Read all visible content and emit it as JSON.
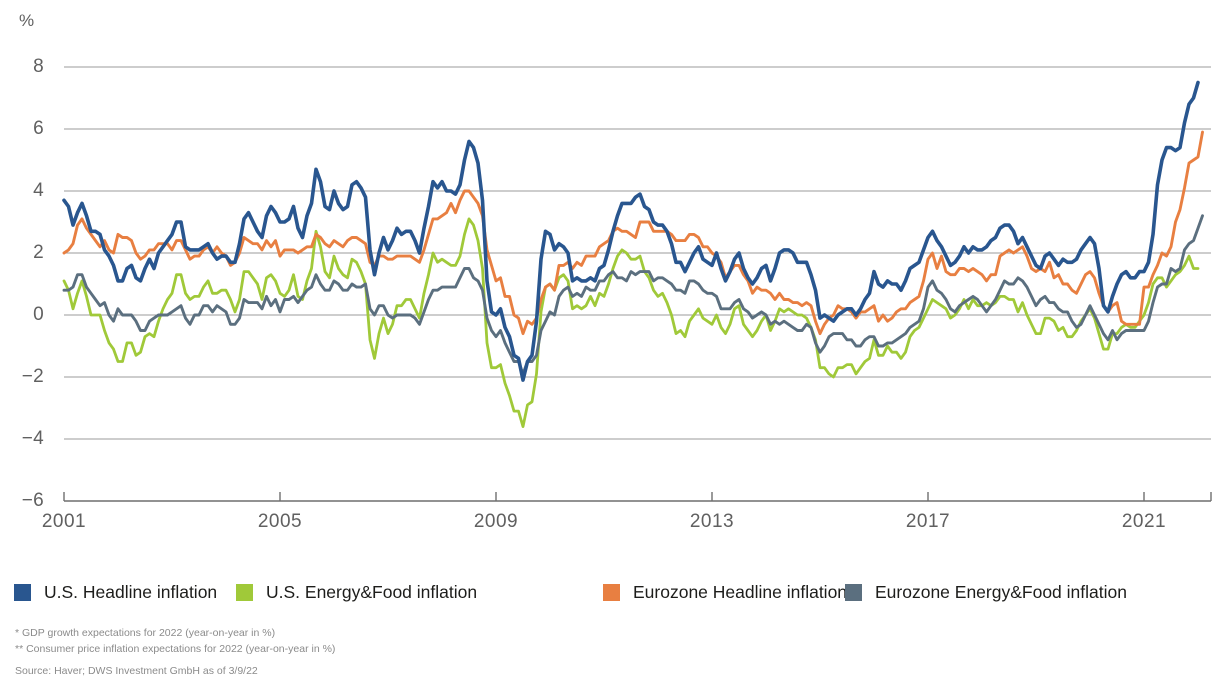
{
  "chart_data": {
    "type": "line",
    "title": "",
    "unit_label": "%",
    "x_start_year": 2001,
    "x_months_per_point": 1,
    "xticks": [
      "2001",
      "2005",
      "2009",
      "2013",
      "2017",
      "2021"
    ],
    "yticks": [
      8,
      6,
      4,
      2,
      0,
      -2,
      -4,
      -6
    ],
    "ylim": [
      -6,
      8
    ],
    "grid": true,
    "legend_position": "bottom",
    "colors": {
      "grid": "#9b9b9b",
      "axis": "#6f6f6f"
    },
    "series": [
      {
        "name": "U.S. Headline inflation",
        "color": "#29568f",
        "values": [
          3.7,
          3.5,
          2.9,
          3.3,
          3.6,
          3.2,
          2.7,
          2.7,
          2.6,
          2.1,
          1.9,
          1.6,
          1.1,
          1.1,
          1.5,
          1.6,
          1.2,
          1.1,
          1.5,
          1.8,
          1.5,
          2.0,
          2.2,
          2.4,
          2.6,
          3.0,
          3.0,
          2.2,
          2.1,
          2.1,
          2.1,
          2.2,
          2.3,
          2.0,
          1.8,
          1.9,
          1.9,
          1.7,
          1.7,
          2.3,
          3.1,
          3.3,
          3.0,
          2.7,
          2.5,
          3.2,
          3.5,
          3.3,
          3.0,
          3.0,
          3.1,
          3.5,
          2.8,
          2.5,
          3.2,
          3.6,
          4.7,
          4.3,
          3.5,
          3.4,
          4.0,
          3.6,
          3.4,
          3.5,
          4.2,
          4.3,
          4.1,
          3.8,
          2.1,
          1.3,
          2.0,
          2.5,
          2.1,
          2.4,
          2.8,
          2.6,
          2.7,
          2.7,
          2.4,
          2.0,
          2.8,
          3.5,
          4.3,
          4.1,
          4.3,
          4.0,
          4.0,
          3.9,
          4.2,
          5.0,
          5.6,
          5.4,
          4.9,
          3.7,
          1.1,
          0.1,
          0.0,
          0.2,
          -0.4,
          -0.7,
          -1.3,
          -1.4,
          -2.1,
          -1.5,
          -1.3,
          -0.2,
          1.8,
          2.7,
          2.6,
          2.1,
          2.3,
          2.2,
          2.0,
          1.1,
          1.2,
          1.1,
          1.1,
          1.2,
          1.1,
          1.5,
          1.6,
          2.1,
          2.7,
          3.2,
          3.6,
          3.6,
          3.6,
          3.8,
          3.9,
          3.5,
          3.4,
          3.0,
          2.9,
          2.9,
          2.7,
          2.3,
          1.7,
          1.7,
          1.4,
          1.7,
          2.0,
          2.2,
          1.8,
          1.7,
          1.6,
          2.0,
          1.5,
          1.1,
          1.4,
          1.8,
          2.0,
          1.5,
          1.2,
          1.0,
          1.2,
          1.5,
          1.6,
          1.1,
          1.5,
          2.0,
          2.1,
          2.1,
          2.0,
          1.7,
          1.7,
          1.7,
          1.3,
          0.8,
          -0.1,
          0.0,
          -0.1,
          -0.2,
          0.0,
          0.1,
          0.2,
          0.2,
          0.0,
          0.2,
          0.5,
          0.7,
          1.4,
          1.0,
          0.9,
          1.1,
          1.0,
          1.0,
          0.8,
          1.1,
          1.5,
          1.6,
          1.7,
          2.1,
          2.5,
          2.7,
          2.4,
          2.2,
          1.9,
          1.6,
          1.7,
          1.9,
          2.2,
          2.0,
          2.2,
          2.1,
          2.1,
          2.2,
          2.4,
          2.5,
          2.8,
          2.9,
          2.9,
          2.7,
          2.3,
          2.5,
          2.2,
          1.9,
          1.6,
          1.5,
          1.9,
          2.0,
          1.8,
          1.6,
          1.8,
          1.7,
          1.7,
          1.8,
          2.1,
          2.3,
          2.5,
          2.3,
          1.5,
          0.3,
          0.1,
          0.6,
          1.0,
          1.3,
          1.4,
          1.2,
          1.2,
          1.4,
          1.4,
          1.7,
          2.6,
          4.2,
          5.0,
          5.4,
          5.4,
          5.3,
          5.4,
          6.2,
          6.8,
          7.0,
          7.5
        ]
      },
      {
        "name": "U.S. Energy&Food inflation",
        "color": "#a0c939",
        "values": [
          1.1,
          0.8,
          0.2,
          0.7,
          1.1,
          0.6,
          0.0,
          0.0,
          0.0,
          -0.5,
          -0.9,
          -1.1,
          -1.5,
          -1.5,
          -0.9,
          -0.9,
          -1.3,
          -1.2,
          -0.7,
          -0.6,
          -0.7,
          -0.2,
          0.2,
          0.5,
          0.7,
          1.3,
          1.3,
          0.7,
          0.5,
          0.6,
          0.6,
          0.9,
          1.1,
          0.7,
          0.7,
          0.8,
          0.8,
          0.5,
          0.1,
          0.5,
          1.4,
          1.4,
          1.2,
          1.0,
          0.5,
          1.2,
          1.3,
          1.1,
          0.7,
          0.6,
          0.8,
          1.3,
          0.6,
          0.5,
          1.1,
          1.5,
          2.7,
          2.2,
          1.4,
          1.2,
          1.9,
          1.5,
          1.3,
          1.2,
          1.8,
          1.7,
          1.4,
          1.0,
          -0.8,
          -1.4,
          -0.6,
          -0.1,
          -0.6,
          -0.3,
          0.3,
          0.3,
          0.5,
          0.5,
          0.2,
          -0.1,
          0.7,
          1.3,
          2.0,
          1.7,
          1.8,
          1.7,
          1.6,
          1.6,
          1.9,
          2.6,
          3.1,
          2.9,
          2.4,
          1.5,
          -0.9,
          -1.7,
          -1.7,
          -1.6,
          -2.2,
          -2.6,
          -3.1,
          -3.1,
          -3.6,
          -2.9,
          -2.8,
          -1.9,
          0.1,
          0.9,
          1.0,
          0.8,
          1.2,
          1.3,
          1.1,
          0.2,
          0.3,
          0.2,
          0.3,
          0.6,
          0.3,
          0.7,
          0.6,
          1.0,
          1.5,
          1.9,
          2.1,
          2.0,
          1.8,
          1.8,
          1.9,
          1.4,
          1.2,
          0.8,
          0.6,
          0.7,
          0.4,
          0.0,
          -0.6,
          -0.5,
          -0.7,
          -0.2,
          0.0,
          0.2,
          -0.1,
          -0.2,
          -0.3,
          0.0,
          -0.4,
          -0.6,
          -0.3,
          0.2,
          0.3,
          -0.3,
          -0.5,
          -0.7,
          -0.5,
          -0.2,
          0.0,
          -0.5,
          -0.2,
          0.2,
          0.1,
          0.2,
          0.1,
          0.0,
          0.0,
          -0.1,
          -0.4,
          -0.8,
          -1.7,
          -1.7,
          -1.9,
          -2.0,
          -1.7,
          -1.7,
          -1.6,
          -1.6,
          -1.9,
          -1.7,
          -1.5,
          -1.4,
          -0.8,
          -1.3,
          -1.3,
          -1.0,
          -1.2,
          -1.2,
          -1.4,
          -1.2,
          -0.7,
          -0.5,
          -0.4,
          -0.1,
          0.2,
          0.5,
          0.4,
          0.3,
          0.2,
          -0.1,
          0.0,
          0.2,
          0.5,
          0.2,
          0.5,
          0.3,
          0.3,
          0.4,
          0.3,
          0.4,
          0.6,
          0.6,
          0.5,
          0.5,
          0.1,
          0.4,
          0.0,
          -0.3,
          -0.6,
          -0.6,
          -0.1,
          -0.1,
          -0.2,
          -0.5,
          -0.4,
          -0.7,
          -0.7,
          -0.5,
          -0.2,
          0.0,
          0.2,
          -0.1,
          -0.6,
          -1.1,
          -1.1,
          -0.6,
          -0.6,
          -0.4,
          -0.3,
          -0.4,
          -0.4,
          -0.2,
          0.0,
          0.4,
          1.0,
          1.2,
          1.2,
          0.9,
          1.1,
          1.3,
          1.4,
          1.6,
          1.9,
          1.5,
          1.5
        ]
      },
      {
        "name": "Eurozone Headline inflation",
        "color": "#e87f41",
        "values": [
          2.0,
          2.1,
          2.3,
          2.9,
          3.1,
          2.8,
          2.6,
          2.4,
          2.2,
          2.4,
          2.1,
          2.0,
          2.6,
          2.5,
          2.5,
          2.4,
          2.0,
          1.8,
          1.9,
          2.1,
          2.1,
          2.3,
          2.3,
          2.3,
          2.1,
          2.4,
          2.4,
          2.1,
          1.8,
          1.9,
          1.9,
          2.1,
          2.2,
          2.0,
          2.2,
          2.0,
          1.9,
          1.6,
          1.7,
          2.0,
          2.5,
          2.4,
          2.3,
          2.3,
          2.1,
          2.4,
          2.2,
          2.4,
          1.9,
          2.1,
          2.1,
          2.1,
          2.0,
          2.1,
          2.2,
          2.2,
          2.6,
          2.5,
          2.3,
          2.2,
          2.4,
          2.3,
          2.2,
          2.4,
          2.5,
          2.5,
          2.4,
          2.3,
          1.7,
          1.6,
          1.9,
          1.9,
          1.8,
          1.8,
          1.9,
          1.9,
          1.9,
          1.9,
          1.8,
          1.7,
          2.1,
          2.6,
          3.1,
          3.1,
          3.2,
          3.3,
          3.6,
          3.3,
          3.7,
          4.0,
          4.0,
          3.8,
          3.6,
          3.2,
          2.1,
          1.6,
          1.1,
          1.2,
          0.6,
          0.6,
          0.0,
          -0.1,
          -0.6,
          -0.2,
          -0.3,
          -0.1,
          0.5,
          0.9,
          1.0,
          0.8,
          1.6,
          1.6,
          1.7,
          1.5,
          1.7,
          1.6,
          1.9,
          1.9,
          1.9,
          2.2,
          2.3,
          2.4,
          2.7,
          2.8,
          2.7,
          2.7,
          2.6,
          2.5,
          3.0,
          3.0,
          3.0,
          2.7,
          2.7,
          2.7,
          2.7,
          2.6,
          2.4,
          2.4,
          2.4,
          2.6,
          2.6,
          2.5,
          2.2,
          2.2,
          2.0,
          1.9,
          1.7,
          1.2,
          1.4,
          1.6,
          1.6,
          1.3,
          1.1,
          0.7,
          0.9,
          0.8,
          0.8,
          0.7,
          0.5,
          0.7,
          0.5,
          0.5,
          0.4,
          0.4,
          0.3,
          0.4,
          0.3,
          -0.2,
          -0.6,
          -0.3,
          -0.1,
          0.0,
          0.3,
          0.2,
          0.2,
          0.1,
          -0.1,
          0.1,
          0.1,
          0.2,
          0.3,
          -0.2,
          0.0,
          -0.2,
          -0.1,
          0.1,
          0.2,
          0.2,
          0.4,
          0.5,
          0.6,
          1.1,
          1.8,
          2.0,
          1.5,
          1.9,
          1.4,
          1.3,
          1.3,
          1.5,
          1.5,
          1.4,
          1.5,
          1.4,
          1.3,
          1.1,
          1.3,
          1.3,
          1.9,
          2.0,
          2.1,
          2.0,
          2.1,
          2.2,
          1.9,
          1.5,
          1.4,
          1.5,
          1.4,
          1.7,
          1.2,
          1.3,
          1.0,
          1.0,
          0.8,
          0.7,
          1.0,
          1.3,
          1.4,
          1.2,
          0.7,
          0.3,
          0.1,
          0.3,
          0.4,
          -0.2,
          -0.3,
          -0.3,
          -0.3,
          -0.3,
          0.9,
          0.9,
          1.3,
          1.6,
          2.0,
          1.9,
          2.2,
          3.0,
          3.4,
          4.1,
          4.9,
          5.0,
          5.1,
          5.9
        ]
      },
      {
        "name": "Eurozone Energy&Food inflation",
        "color": "#5b6f7f",
        "values": [
          0.8,
          0.8,
          0.9,
          1.3,
          1.3,
          0.9,
          0.7,
          0.5,
          0.3,
          0.4,
          0.0,
          -0.2,
          0.2,
          0.0,
          0.0,
          0.0,
          -0.2,
          -0.5,
          -0.5,
          -0.2,
          -0.1,
          0.0,
          0.0,
          0.0,
          0.1,
          0.2,
          0.3,
          -0.1,
          -0.3,
          0.0,
          0.0,
          0.3,
          0.3,
          0.1,
          0.3,
          0.2,
          0.1,
          -0.3,
          -0.3,
          -0.1,
          0.5,
          0.4,
          0.4,
          0.4,
          0.2,
          0.6,
          0.3,
          0.5,
          0.1,
          0.5,
          0.5,
          0.6,
          0.4,
          0.6,
          0.8,
          0.9,
          1.3,
          1.0,
          0.8,
          0.8,
          1.1,
          1.0,
          0.8,
          0.8,
          1.0,
          0.9,
          0.9,
          1.0,
          0.2,
          0.0,
          0.3,
          0.3,
          0.0,
          -0.1,
          0.0,
          0.0,
          0.0,
          0.0,
          -0.1,
          -0.3,
          0.1,
          0.5,
          0.8,
          0.8,
          0.9,
          0.9,
          0.9,
          0.9,
          1.2,
          1.5,
          1.5,
          1.2,
          1.1,
          0.8,
          -0.1,
          -0.5,
          -0.7,
          -0.5,
          -0.9,
          -1.2,
          -1.5,
          -1.5,
          -1.9,
          -1.5,
          -1.5,
          -1.3,
          -0.5,
          -0.2,
          0.1,
          0.0,
          0.6,
          0.8,
          0.9,
          0.6,
          0.7,
          0.6,
          0.9,
          0.8,
          0.8,
          1.1,
          1.1,
          1.3,
          1.4,
          1.2,
          1.2,
          1.1,
          1.4,
          1.3,
          1.4,
          1.4,
          1.4,
          1.1,
          1.2,
          1.2,
          1.1,
          1.0,
          0.8,
          0.8,
          0.7,
          1.1,
          1.1,
          1.0,
          0.8,
          0.7,
          0.7,
          0.6,
          0.2,
          0.2,
          0.2,
          0.4,
          0.5,
          0.2,
          0.1,
          -0.1,
          0.0,
          0.1,
          0.0,
          -0.3,
          -0.2,
          -0.3,
          -0.2,
          -0.3,
          -0.4,
          -0.5,
          -0.5,
          -0.3,
          -0.4,
          -0.9,
          -1.2,
          -1.0,
          -0.7,
          -0.6,
          -0.6,
          -0.6,
          -0.8,
          -0.8,
          -1.0,
          -1.0,
          -0.8,
          -0.7,
          -0.7,
          -1.0,
          -1.0,
          -0.9,
          -0.9,
          -0.8,
          -0.7,
          -0.6,
          -0.4,
          -0.3,
          -0.2,
          0.2,
          0.9,
          1.1,
          0.8,
          0.7,
          0.5,
          0.2,
          0.1,
          0.3,
          0.4,
          0.5,
          0.6,
          0.5,
          0.3,
          0.1,
          0.3,
          0.5,
          0.8,
          1.1,
          1.0,
          1.0,
          1.2,
          1.1,
          0.9,
          0.6,
          0.3,
          0.5,
          0.6,
          0.4,
          0.4,
          0.2,
          0.1,
          0.1,
          -0.2,
          -0.4,
          -0.3,
          0.0,
          0.3,
          0.0,
          -0.3,
          -0.6,
          -0.8,
          -0.5,
          -0.8,
          -0.6,
          -0.5,
          -0.5,
          -0.5,
          -0.5,
          -0.5,
          -0.2,
          0.4,
          0.9,
          1.0,
          1.0,
          1.5,
          1.4,
          1.5,
          2.1,
          2.3,
          2.4,
          2.8,
          3.2
        ]
      }
    ]
  },
  "footnotes": {
    "line1": "* GDP growth expectations for 2022 (year-on-year in %)",
    "line2": "** Consumer price inflation expectations for 2022 (year-on-year in %)",
    "source": "Source: Haver; DWS Investment GmbH as of 3/9/22"
  }
}
